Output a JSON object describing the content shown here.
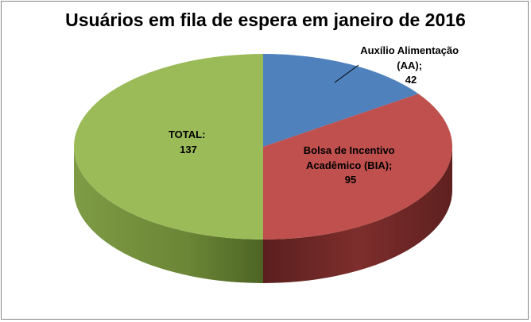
{
  "chart_data": {
    "type": "pie",
    "style": "3d",
    "title": "Usuários em fila de espera em janeiro de 2016",
    "slices": [
      {
        "label_lines": [
          "Auxílio Alimentação",
          "(AA);",
          "42"
        ],
        "name": "Auxílio Alimentação (AA)",
        "value": 42,
        "color": "#4F81BD"
      },
      {
        "label_lines": [
          "Bolsa de Incentivo",
          "Acadêmico (BIA);",
          "95"
        ],
        "name": "Bolsa de Incentivo Acadêmico (BIA)",
        "value": 95,
        "color": "#C0504D"
      },
      {
        "label_lines": [
          "TOTAL:",
          "137"
        ],
        "name": "TOTAL",
        "value": 137,
        "color": "#9BBB59"
      }
    ],
    "legend": "none"
  }
}
